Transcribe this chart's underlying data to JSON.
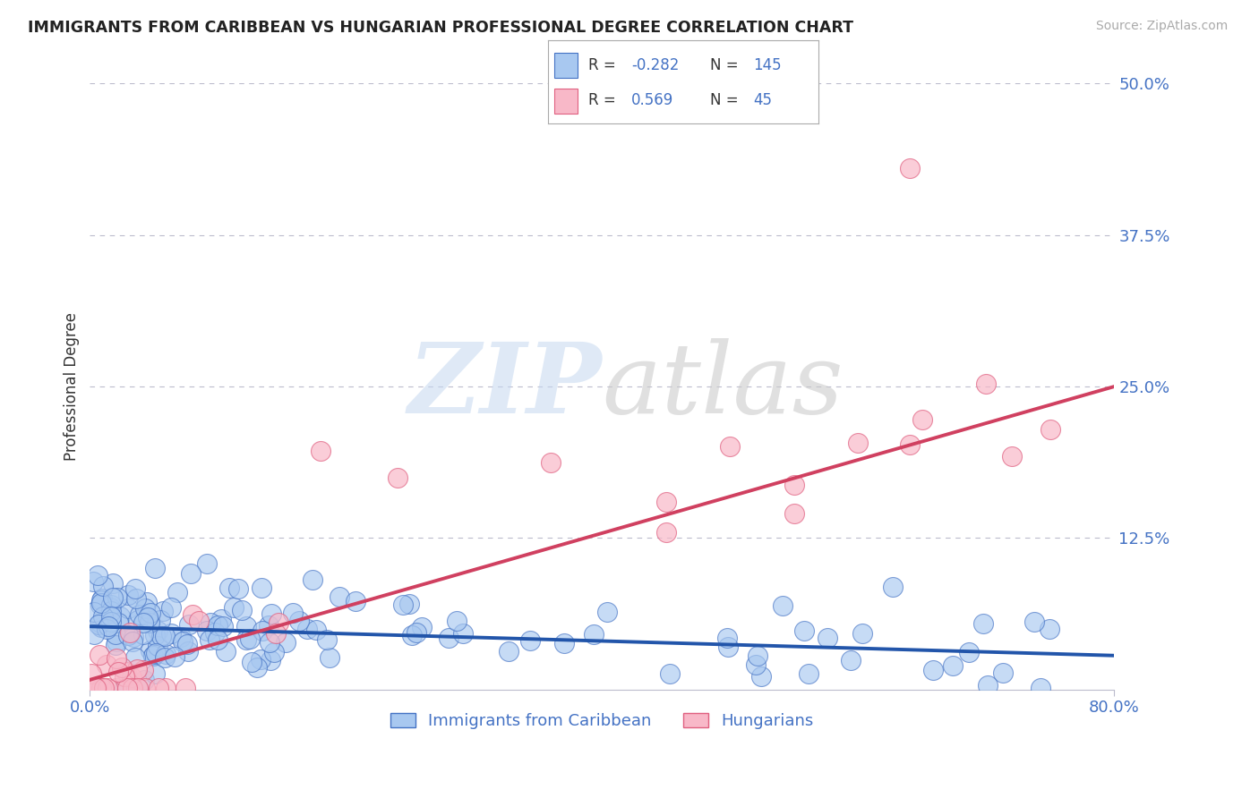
{
  "title": "IMMIGRANTS FROM CARIBBEAN VS HUNGARIAN PROFESSIONAL DEGREE CORRELATION CHART",
  "source": "Source: ZipAtlas.com",
  "ylabel": "Professional Degree",
  "legend_labels": [
    "Immigrants from Caribbean",
    "Hungarians"
  ],
  "r_carib": -0.282,
  "n_carib": 145,
  "r_hung": 0.569,
  "n_hung": 45,
  "xlim": [
    0.0,
    0.8
  ],
  "ylim": [
    0.0,
    0.5
  ],
  "color_blue": "#A8C8F0",
  "color_blue_dark": "#4472C4",
  "color_blue_line": "#2255AA",
  "color_pink": "#F8B8C8",
  "color_pink_dark": "#E06080",
  "color_pink_line": "#D04060",
  "color_text_blue": "#4472C4",
  "background_color": "#FFFFFF",
  "grid_color": "#BBBBCC",
  "carib_line_start_y": 0.052,
  "carib_line_end_y": 0.028,
  "hung_line_start_y": 0.008,
  "hung_line_end_y": 0.25
}
